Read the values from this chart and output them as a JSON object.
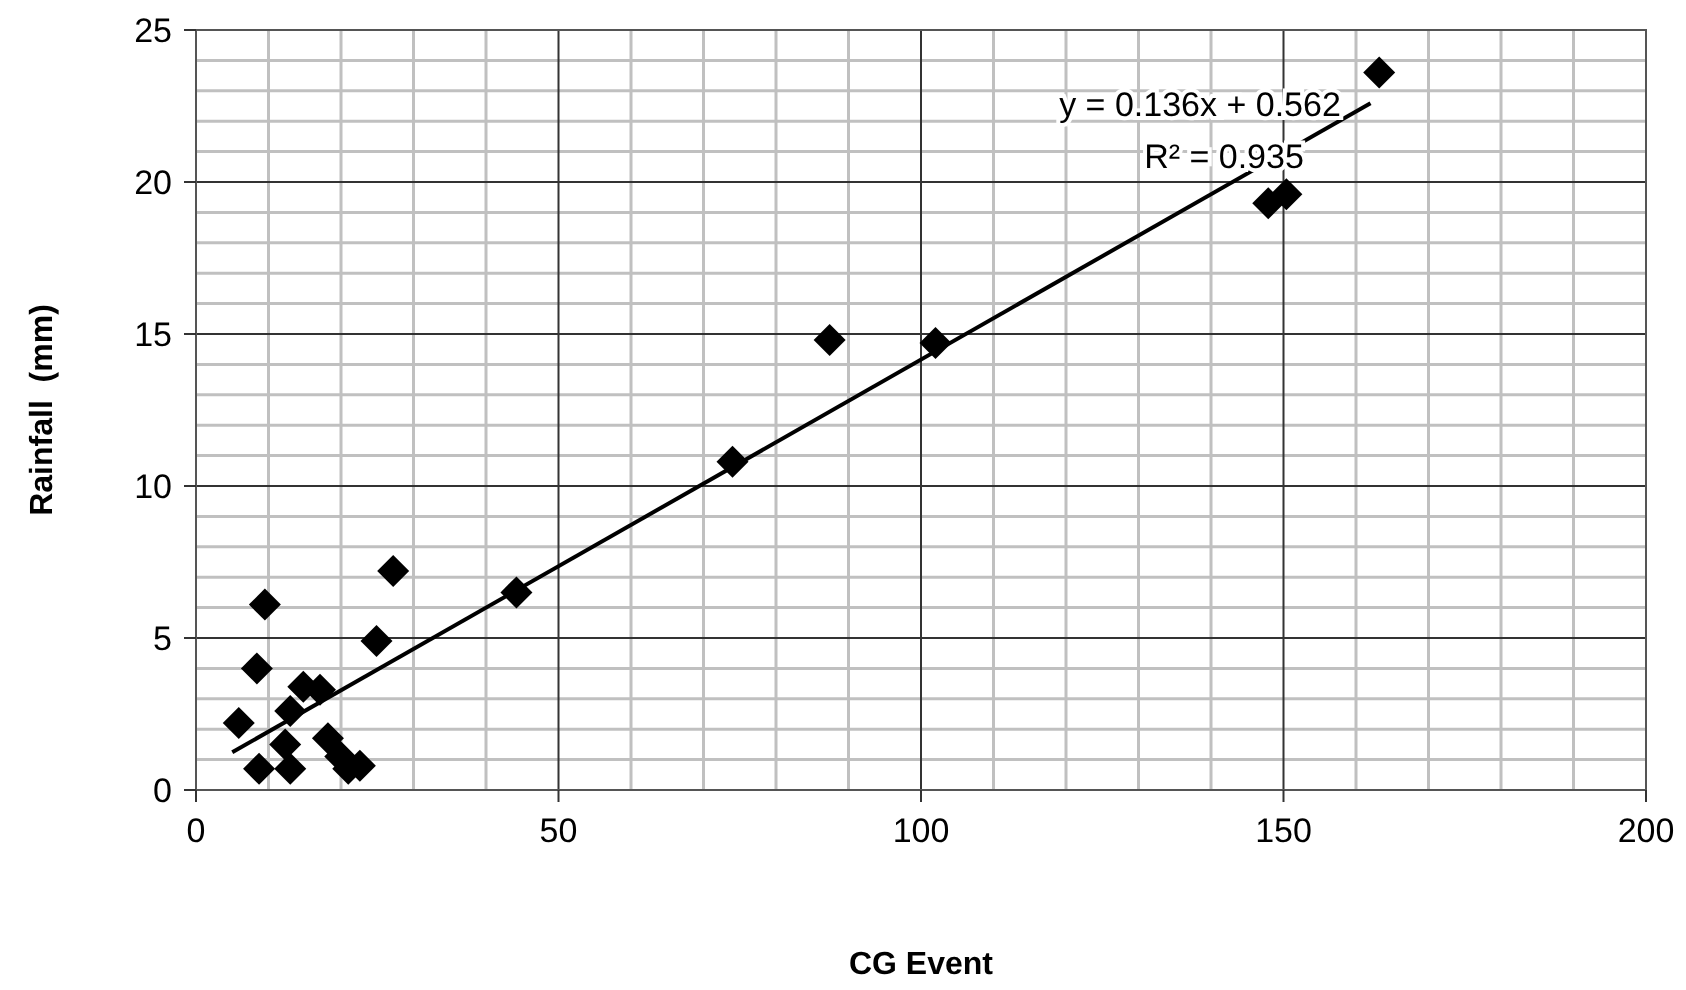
{
  "chart_data": {
    "type": "scatter",
    "xlabel": "CG Event",
    "ylabel": "Rainfall  (mm)",
    "xlim": [
      0,
      200
    ],
    "ylim": [
      0,
      25
    ],
    "xticks": [
      0,
      50,
      100,
      150,
      200
    ],
    "yticks": [
      0,
      5,
      10,
      15,
      20,
      25
    ],
    "grid": true,
    "marker": "diamond",
    "annotations": [
      "y = 0.136x + 0.562",
      "R² = 0.935"
    ],
    "series": [
      {
        "color": "#000000",
        "x": [
          5.9,
          8.4,
          9.5,
          27.2,
          24.9,
          44.2,
          14.8,
          17.1,
          13,
          12.3,
          13,
          18.2,
          19.9,
          22.6,
          21,
          8.7,
          74,
          87.4,
          102,
          147.9,
          150.4,
          163.2
        ],
        "values": [
          2.2,
          4.0,
          6.1,
          7.2,
          4.9,
          6.5,
          3.4,
          3.3,
          2.6,
          1.5,
          0.7,
          1.7,
          1.1,
          0.8,
          0.7,
          0.7,
          10.8,
          14.8,
          14.7,
          19.3,
          19.6,
          23.6
        ]
      },
      {
        "type": "line",
        "color": "#000000",
        "x": [
          5,
          162
        ],
        "values": [
          1.24,
          22.59
        ],
        "marker": "none",
        "line_style": "solid"
      }
    ]
  }
}
